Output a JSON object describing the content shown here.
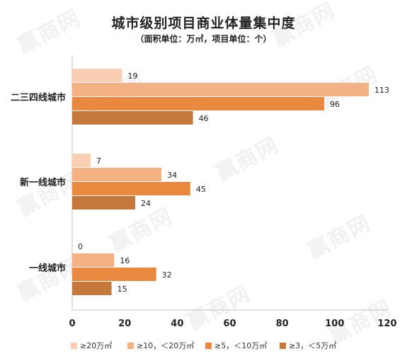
{
  "chart_data": {
    "type": "bar",
    "orientation": "horizontal",
    "title": "城市级别项目商业体量集中度",
    "subtitle": "（面积单位：万㎡，项目单位：个）",
    "categories": [
      "二三四线城市",
      "新一线城市",
      "一线城市"
    ],
    "series": [
      {
        "name": "≥20万㎡",
        "color": "#f9cfb4",
        "values": [
          19,
          7,
          0
        ]
      },
      {
        "name": "≥10，＜20万㎡",
        "color": "#f4b183",
        "values": [
          113,
          34,
          16
        ]
      },
      {
        "name": "≥5，＜10万㎡",
        "color": "#e8893f",
        "values": [
          96,
          45,
          32
        ]
      },
      {
        "name": "≥3，＜5万㎡",
        "color": "#c5783b",
        "values": [
          46,
          24,
          15
        ]
      }
    ],
    "xlim": [
      0,
      120
    ],
    "xticks": [
      0,
      20,
      40,
      60,
      80,
      100,
      120
    ],
    "grid": false,
    "legend": "bottom"
  },
  "watermark": "赢商网"
}
